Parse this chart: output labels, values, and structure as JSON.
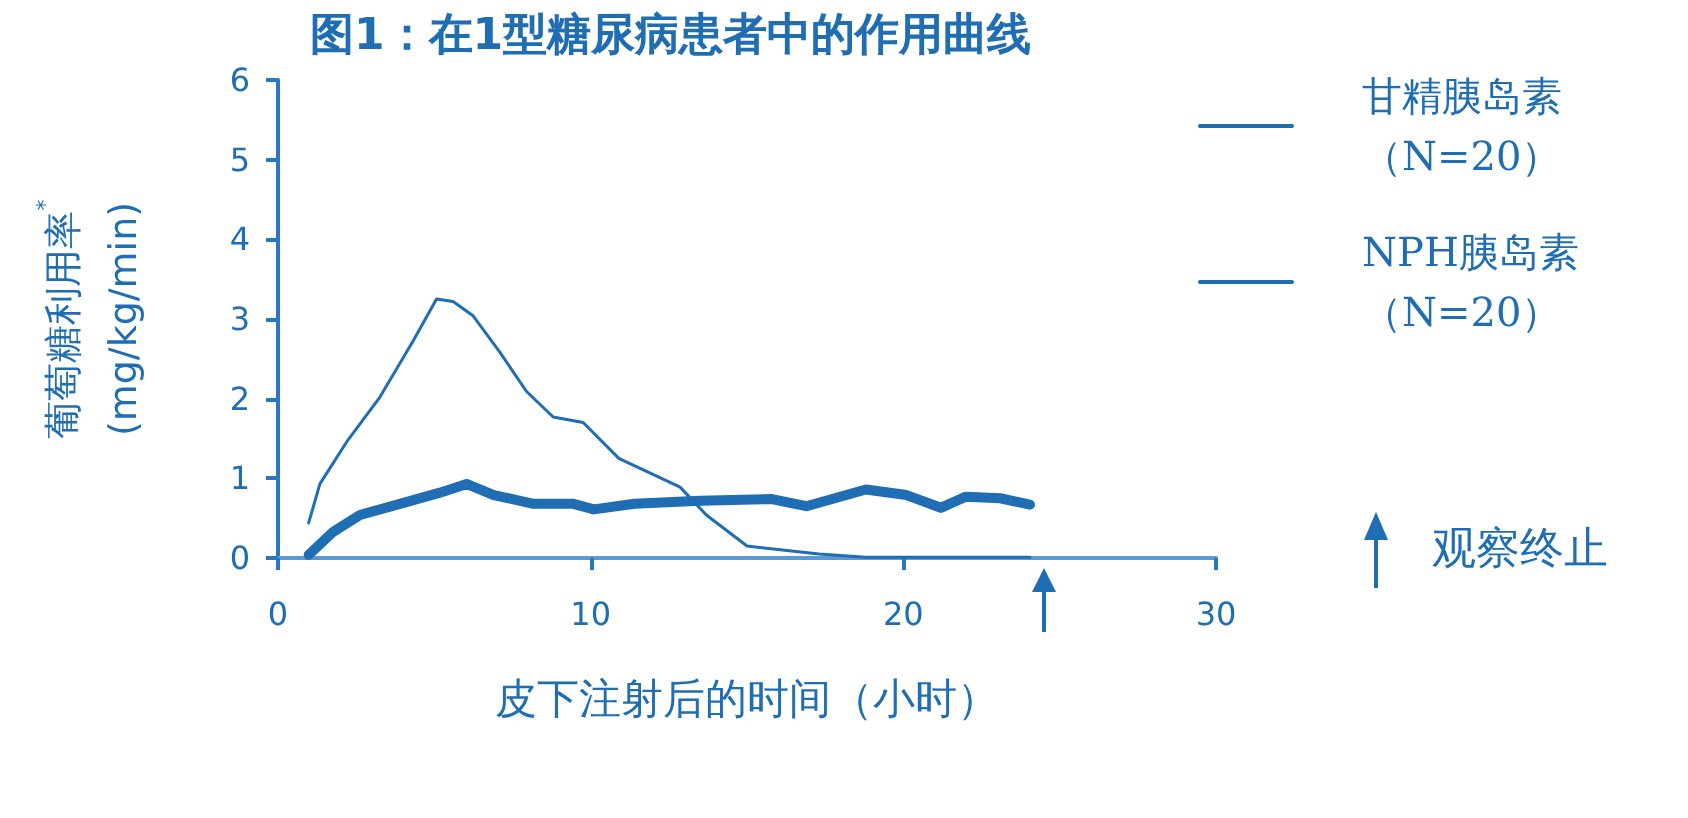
{
  "chart_data": {
    "type": "line",
    "title": "图1：在1型糖尿病患者中的作用曲线",
    "xlabel": "皮下注射后的时间（小时）",
    "ylabel": "葡萄糖利用率$^{*}$\n(mg/kg/min)",
    "xlim": [
      0,
      30
    ],
    "xticks": [
      0,
      10,
      20,
      30
    ],
    "ylim": [
      0,
      6
    ],
    "yticks": [
      0,
      1,
      2,
      3,
      4,
      5,
      6
    ],
    "grid": false,
    "legend": "top right",
    "marker": "none",
    "line_style": "solid",
    "annotations": [
      "观察终止"
    ],
    "series": [
      {
        "name": "甘精胰岛素（N=20）",
        "color": "#1f6db3",
        "x": [
          0.98,
          1.77,
          2.62,
          3.9,
          5.18,
          6.03,
          6.9,
          8.17,
          9.45,
          10.1,
          11.4,
          13.5,
          15.8,
          16.9,
          18.8,
          20.1,
          21.2,
          22.0,
          23.1,
          24.05
        ],
        "values": [
          0.04,
          0.33,
          0.54,
          0.68,
          0.82,
          0.93,
          0.79,
          0.68,
          0.68,
          0.61,
          0.68,
          0.72,
          0.74,
          0.65,
          0.86,
          0.79,
          0.63,
          0.77,
          0.75,
          0.67
        ]
      },
      {
        "name": "NPH胰岛素（N=20）",
        "color": "#1f6db3",
        "x": [
          0.98,
          1.34,
          2.2,
          3.26,
          4.33,
          5.07,
          5.6,
          6.24,
          7.1,
          7.95,
          8.8,
          9.76,
          10.9,
          12.86,
          13.7,
          15.0,
          17.3,
          18.8,
          24.05
        ],
        "values": [
          0.44,
          0.93,
          1.46,
          2.02,
          2.73,
          3.25,
          3.22,
          3.04,
          2.58,
          2.09,
          1.77,
          1.7,
          1.25,
          0.89,
          0.54,
          0.15,
          0.05,
          0.01,
          0.01
        ]
      }
    ]
  }
}
